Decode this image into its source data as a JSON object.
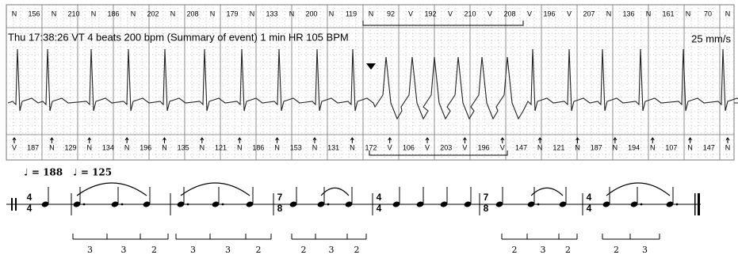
{
  "strip": {
    "header": "Thu 17:38:26 VT 4 beats 200 bpm (Summary of event) 1 min HR 105 BPM",
    "speed": "25 mm/s",
    "top_annotations": [
      "N",
      "156",
      "N",
      "210",
      "N",
      "186",
      "N",
      "202",
      "N",
      "208",
      "N",
      "179",
      "N",
      "133",
      "N",
      "200",
      "N",
      "119",
      "N",
      "92",
      "V",
      "192",
      "V",
      "210",
      "V",
      "208",
      "V",
      "196",
      "V",
      "207",
      "N",
      "136",
      "N",
      "161",
      "N",
      "70",
      "N"
    ],
    "bottom_annotations": [
      "V",
      "187",
      "N",
      "129",
      "N",
      "134",
      "N",
      "196",
      "N",
      "135",
      "N",
      "121",
      "N",
      "186",
      "N",
      "153",
      "N",
      "131",
      "N",
      "172",
      "V",
      "106",
      "V",
      "203",
      "V",
      "196",
      "V",
      "147",
      "N",
      "121",
      "N",
      "187",
      "N",
      "194",
      "N",
      "107",
      "N",
      "147",
      "N"
    ]
  },
  "notation": {
    "tempos": [
      "♩ = 188",
      "♩ = 125"
    ],
    "time_signatures": [
      {
        "top": "4",
        "bottom": "4"
      },
      {
        "top": "7",
        "bottom": "8"
      },
      {
        "top": "4",
        "bottom": "4"
      },
      {
        "top": "7",
        "bottom": "8"
      },
      {
        "top": "4",
        "bottom": "4"
      }
    ],
    "groupings": [
      [
        "3",
        "3",
        "2"
      ],
      [
        "3",
        "3",
        "2"
      ],
      [
        "2",
        "3",
        "2"
      ],
      [
        "2",
        "3",
        "2"
      ],
      [
        "2",
        "3"
      ]
    ]
  }
}
